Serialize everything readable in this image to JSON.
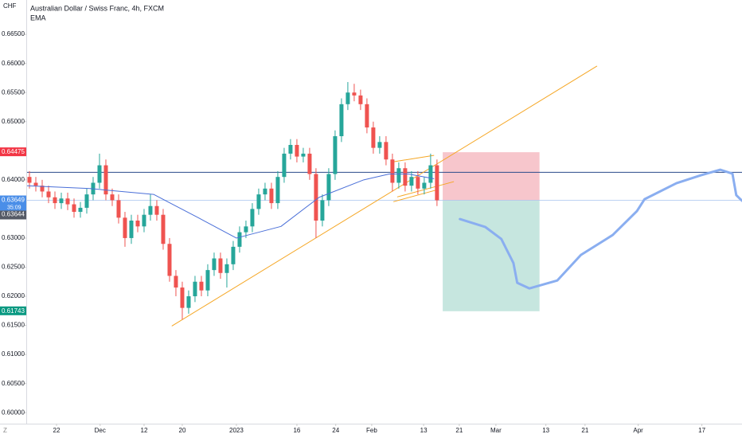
{
  "chart_data": {
    "type": "candlestick",
    "title": "Australian Dollar / Swiss Franc, 4h, FXCM",
    "indicator_label": "EMA",
    "currency": "CHF",
    "countdown": "35:09",
    "up_color": "#26a69a",
    "down_color": "#ef5350",
    "xlim": [
      0,
      112.4
    ],
    "ylim": [
      0.5977,
      0.6709
    ],
    "xticks": [
      {
        "value": 4.75,
        "label": "22"
      },
      {
        "value": 11.6,
        "label": "Dec"
      },
      {
        "value": 18.5,
        "label": "12"
      },
      {
        "value": 24.5,
        "label": "20"
      },
      {
        "value": 33,
        "label": "2023"
      },
      {
        "value": 42.5,
        "label": "16"
      },
      {
        "value": 48.6,
        "label": "24"
      },
      {
        "value": 54.25,
        "label": "Feb"
      },
      {
        "value": 62.4,
        "label": "13"
      },
      {
        "value": 68,
        "label": "21"
      },
      {
        "value": 73.75,
        "label": "Mar"
      },
      {
        "value": 81.6,
        "label": "13"
      },
      {
        "value": 87.75,
        "label": "21"
      },
      {
        "value": 96.1,
        "label": "Apr"
      },
      {
        "value": 106.1,
        "label": "17"
      }
    ],
    "yticks": [
      {
        "value": 0.6,
        "label": "0.60000"
      },
      {
        "value": 0.605,
        "label": "0.60500"
      },
      {
        "value": 0.61,
        "label": "0.61000"
      },
      {
        "value": 0.615,
        "label": "0.61500"
      },
      {
        "value": 0.62,
        "label": "0.62000"
      },
      {
        "value": 0.625,
        "label": "0.62500"
      },
      {
        "value": 0.63,
        "label": "0.63000"
      },
      {
        "value": 0.64,
        "label": "0.64000"
      },
      {
        "value": 0.65,
        "label": "0.65000"
      },
      {
        "value": 0.655,
        "label": "0.65500"
      },
      {
        "value": 0.66,
        "label": "0.66000"
      },
      {
        "value": 0.665,
        "label": "0.66500"
      }
    ],
    "open": [
      0.6405,
      0.6395,
      0.639,
      0.638,
      0.637,
      0.636,
      0.6368,
      0.6358,
      0.6345,
      0.6352,
      0.6375,
      0.6395,
      0.6425,
      0.6375,
      0.6365,
      0.6335,
      0.63,
      0.633,
      0.632,
      0.634,
      0.6355,
      0.634,
      0.629,
      0.6235,
      0.6215,
      0.618,
      0.62,
      0.6225,
      0.621,
      0.6245,
      0.6265,
      0.624,
      0.6255,
      0.6285,
      0.631,
      0.632,
      0.635,
      0.6375,
      0.6385,
      0.636,
      0.6405,
      0.6445,
      0.646,
      0.644,
      0.6445,
      0.641,
      0.633,
      0.6365,
      0.641,
      0.6475,
      0.653,
      0.655,
      0.6545,
      0.653,
      0.649,
      0.6455,
      0.6465,
      0.6435,
      0.6395,
      0.642,
      0.639,
      0.6405,
      0.6385,
      0.6395,
      0.6425
    ],
    "high": [
      0.6415,
      0.6405,
      0.64,
      0.639,
      0.638,
      0.6378,
      0.6378,
      0.6368,
      0.6362,
      0.6385,
      0.6405,
      0.6445,
      0.6435,
      0.6385,
      0.6375,
      0.6345,
      0.634,
      0.634,
      0.635,
      0.6375,
      0.6365,
      0.635,
      0.63,
      0.6245,
      0.6225,
      0.621,
      0.6235,
      0.6235,
      0.6255,
      0.6275,
      0.6275,
      0.6265,
      0.6295,
      0.632,
      0.633,
      0.636,
      0.6385,
      0.6395,
      0.6395,
      0.6415,
      0.6455,
      0.647,
      0.647,
      0.6455,
      0.6455,
      0.642,
      0.6375,
      0.642,
      0.6485,
      0.654,
      0.6568,
      0.6565,
      0.6555,
      0.654,
      0.65,
      0.6475,
      0.6475,
      0.6445,
      0.643,
      0.643,
      0.6415,
      0.6415,
      0.6405,
      0.6445,
      0.6435
    ],
    "low": [
      0.6385,
      0.638,
      0.637,
      0.636,
      0.635,
      0.635,
      0.6348,
      0.6335,
      0.6335,
      0.6342,
      0.6365,
      0.6385,
      0.6365,
      0.6355,
      0.6325,
      0.6285,
      0.629,
      0.631,
      0.631,
      0.633,
      0.633,
      0.628,
      0.6225,
      0.62,
      0.616,
      0.617,
      0.619,
      0.62,
      0.62,
      0.6235,
      0.623,
      0.6215,
      0.6245,
      0.6275,
      0.63,
      0.631,
      0.634,
      0.6365,
      0.635,
      0.635,
      0.6395,
      0.6435,
      0.643,
      0.643,
      0.64,
      0.63,
      0.632,
      0.6355,
      0.64,
      0.6465,
      0.652,
      0.6535,
      0.652,
      0.648,
      0.6445,
      0.6445,
      0.6425,
      0.638,
      0.6385,
      0.638,
      0.638,
      0.6375,
      0.6375,
      0.6385,
      0.6355
    ],
    "close": [
      0.6395,
      0.639,
      0.638,
      0.637,
      0.636,
      0.6368,
      0.6358,
      0.6345,
      0.6352,
      0.6375,
      0.6395,
      0.6425,
      0.6375,
      0.6365,
      0.6335,
      0.63,
      0.633,
      0.632,
      0.634,
      0.6355,
      0.634,
      0.629,
      0.6235,
      0.6215,
      0.618,
      0.62,
      0.6225,
      0.621,
      0.6245,
      0.6265,
      0.624,
      0.6255,
      0.6285,
      0.631,
      0.632,
      0.635,
      0.6375,
      0.6385,
      0.636,
      0.6405,
      0.6445,
      0.646,
      0.644,
      0.6445,
      0.641,
      0.633,
      0.6365,
      0.641,
      0.6475,
      0.653,
      0.655,
      0.6545,
      0.653,
      0.649,
      0.6455,
      0.6465,
      0.6435,
      0.6395,
      0.642,
      0.639,
      0.6405,
      0.6385,
      0.6395,
      0.6425,
      0.63649
    ],
    "ema": {
      "color": "#4a6fd8",
      "x": [
        0,
        10,
        20,
        27,
        33,
        40,
        46,
        53,
        57,
        60,
        64
      ],
      "values": [
        0.639,
        0.6385,
        0.6375,
        0.6335,
        0.63,
        0.632,
        0.637,
        0.64,
        0.641,
        0.641,
        0.6402
      ]
    },
    "forecast": {
      "color": "#8aaef0",
      "x": [
        68.1,
        72.1,
        74.6,
        76.5,
        77.1,
        79.0,
        83.4,
        87.1,
        92.1,
        95.9,
        97.1,
        102.1,
        105.9,
        109.0,
        110.9,
        111.5,
        112.4
      ],
      "values": [
        0.63326,
        0.63189,
        0.62984,
        0.62573,
        0.62231,
        0.62135,
        0.62272,
        0.6271,
        0.63053,
        0.63463,
        0.63668,
        0.63942,
        0.64078,
        0.64174,
        0.64106,
        0.63737,
        0.63641
      ]
    },
    "hline": {
      "value": 0.6413,
      "color": "#2a4a8a"
    },
    "trend_lines": [
      {
        "color": "#f5a623",
        "x": [
          22.9,
          89.6
        ],
        "values": [
          0.61491,
          0.65953
        ]
      },
      {
        "color": "#f5a623",
        "x": [
          57.7,
          64.0
        ],
        "values": [
          0.64311,
          0.64421
        ]
      },
      {
        "color": "#f5a623",
        "x": [
          57.7,
          64.6
        ],
        "values": [
          0.63626,
          0.63831
        ]
      },
      {
        "color": "#f5a623",
        "x": [
          58.3,
          67.1
        ],
        "values": [
          0.63708,
          0.63968
        ]
      }
    ],
    "position": {
      "x": [
        65.4,
        80.6
      ],
      "stop_color": "#f7c6cc",
      "target_color": "#c6e6df"
    },
    "price_labels": [
      {
        "value": 0.64475,
        "color": "#f23645"
      },
      {
        "value": 0.63649,
        "color": "#4a8ee8"
      },
      {
        "value": 0.63644,
        "color": "#555a66"
      },
      {
        "value": 0.61743,
        "color": "#089981"
      }
    ]
  }
}
